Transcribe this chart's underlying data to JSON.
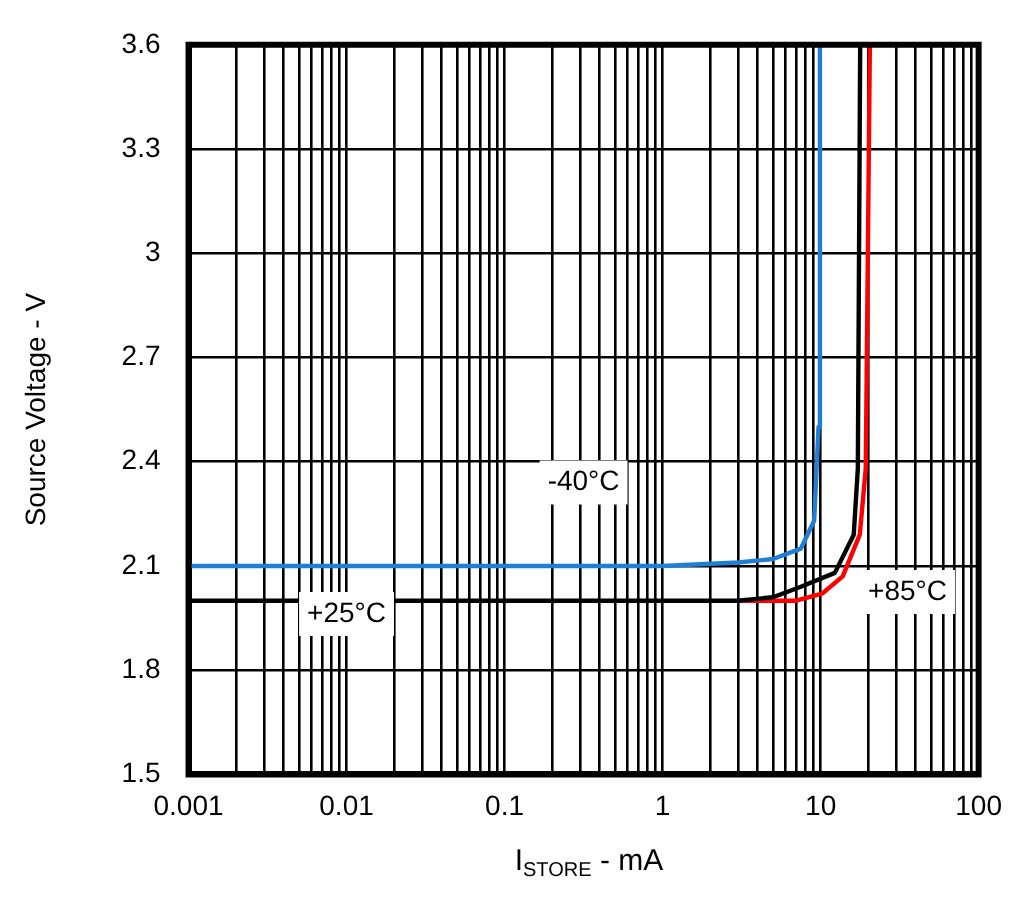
{
  "chart_data": {
    "type": "line",
    "xlabel": "I$_{STORE}$ - mA",
    "ylabel": "Source Voltage - V",
    "log": "x",
    "xlim": [
      0.001,
      100
    ],
    "ylim": [
      1.5,
      3.6
    ],
    "xticks": [
      0.001,
      {
        "value": 0.002,
        "label": null
      },
      {
        "value": 0.003,
        "label": null
      },
      {
        "value": 0.004,
        "label": null
      },
      {
        "value": 0.005,
        "label": null
      },
      {
        "value": 0.006,
        "label": null
      },
      {
        "value": 0.007,
        "label": null
      },
      {
        "value": 0.008,
        "label": null
      },
      {
        "value": 0.009,
        "label": null
      },
      0.01,
      {
        "value": 0.02,
        "label": null
      },
      {
        "value": 0.03,
        "label": null
      },
      {
        "value": 0.04,
        "label": null
      },
      {
        "value": 0.05,
        "label": null
      },
      {
        "value": 0.06,
        "label": null
      },
      {
        "value": 0.07,
        "label": null
      },
      {
        "value": 0.08,
        "label": null
      },
      {
        "value": 0.09,
        "label": null
      },
      0.1,
      {
        "value": 0.2,
        "label": null
      },
      {
        "value": 0.3,
        "label": null
      },
      {
        "value": 0.4,
        "label": null
      },
      {
        "value": 0.5,
        "label": null
      },
      {
        "value": 0.6,
        "label": null
      },
      {
        "value": 0.7,
        "label": null
      },
      {
        "value": 0.8,
        "label": null
      },
      {
        "value": 0.9,
        "label": null
      },
      1,
      {
        "value": 2,
        "label": null
      },
      {
        "value": 3,
        "label": null
      },
      {
        "value": 4,
        "label": null
      },
      {
        "value": 5,
        "label": null
      },
      {
        "value": 6,
        "label": null
      },
      {
        "value": 7,
        "label": null
      },
      {
        "value": 8,
        "label": null
      },
      {
        "value": 9,
        "label": null
      },
      10,
      {
        "value": 20,
        "label": null
      },
      {
        "value": 30,
        "label": null
      },
      {
        "value": 40,
        "label": null
      },
      {
        "value": 50,
        "label": null
      },
      {
        "value": 60,
        "label": null
      },
      {
        "value": 70,
        "label": null
      },
      {
        "value": 80,
        "label": null
      },
      {
        "value": 90,
        "label": null
      },
      100
    ],
    "yticks": [
      1.5,
      1.8,
      2.1,
      2.4,
      2.7,
      3.0,
      3.3,
      3.6
    ],
    "grid": true,
    "legend": false,
    "marker": "none",
    "line_style": "solid",
    "series": [
      {
        "name": "-40°C",
        "color": "#1f7fd4",
        "x": [
          0.001,
          0.1,
          1,
          3,
          5,
          7.5,
          9.1,
          9.7,
          9.9
        ],
        "values": [
          2.1,
          2.1,
          2.1,
          2.11,
          2.12,
          2.15,
          2.23,
          2.5,
          3.6
        ]
      },
      {
        "name": "+25°C",
        "color": "#000000",
        "x": [
          0.001,
          0.1,
          1,
          3,
          5,
          7.5,
          12.3,
          16.2,
          17.2,
          17.8
        ],
        "values": [
          2.0,
          2.0,
          2.0,
          2.0,
          2.01,
          2.04,
          2.08,
          2.19,
          2.38,
          3.6
        ]
      },
      {
        "name": "+85°C",
        "color": "#ff0000",
        "x": [
          3,
          7,
          10.2,
          13.8,
          17.7,
          19.3,
          20.5
        ],
        "values": [
          2.0,
          2.0,
          2.02,
          2.07,
          2.19,
          2.38,
          3.6
        ]
      }
    ]
  }
}
